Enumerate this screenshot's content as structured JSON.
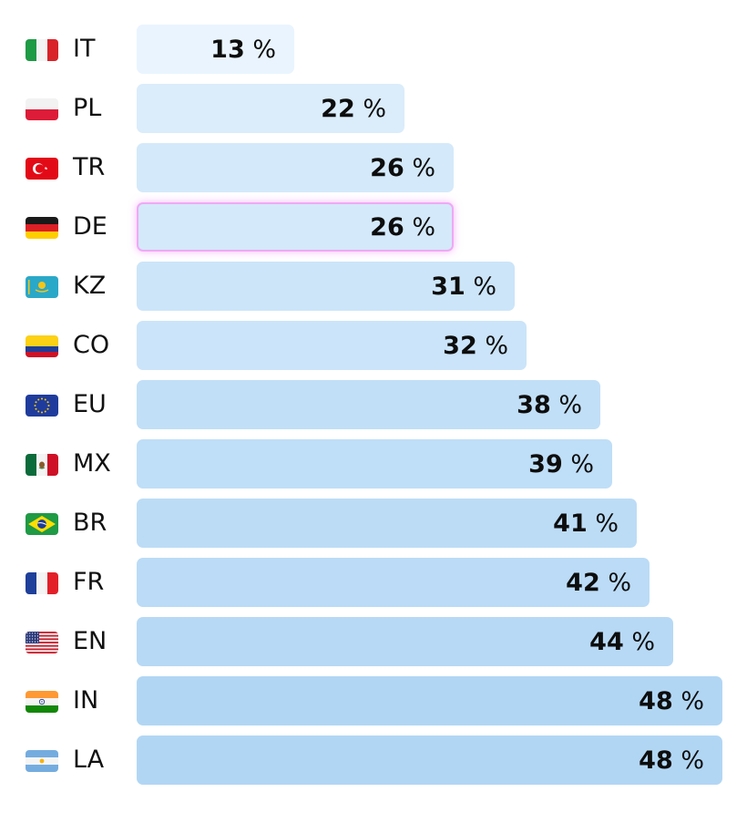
{
  "chart_data": {
    "type": "bar",
    "orientation": "horizontal",
    "categories": [
      "IT",
      "PL",
      "TR",
      "DE",
      "KZ",
      "CO",
      "EU",
      "MX",
      "BR",
      "FR",
      "EN",
      "IN",
      "LA"
    ],
    "values": [
      13,
      22,
      26,
      26,
      31,
      32,
      38,
      39,
      41,
      42,
      44,
      48,
      48
    ],
    "value_labels": [
      "13",
      "22",
      "26",
      "26",
      "31",
      "32",
      "38",
      "39",
      "41",
      "42",
      "44",
      "48",
      "48"
    ],
    "unit_suffix": " %",
    "highlighted_category": "DE",
    "title": "",
    "xlabel": "",
    "ylabel": "",
    "xlim": [
      0,
      48
    ],
    "grid": false,
    "legend": "none",
    "flags": [
      {
        "code": "IT",
        "icon": "italy-flag-icon"
      },
      {
        "code": "PL",
        "icon": "poland-flag-icon"
      },
      {
        "code": "TR",
        "icon": "turkey-flag-icon"
      },
      {
        "code": "DE",
        "icon": "germany-flag-icon"
      },
      {
        "code": "KZ",
        "icon": "kazakhstan-flag-icon"
      },
      {
        "code": "CO",
        "icon": "colombia-flag-icon"
      },
      {
        "code": "EU",
        "icon": "european-union-flag-icon"
      },
      {
        "code": "MX",
        "icon": "mexico-flag-icon"
      },
      {
        "code": "BR",
        "icon": "brazil-flag-icon"
      },
      {
        "code": "FR",
        "icon": "france-flag-icon"
      },
      {
        "code": "EN",
        "icon": "united-states-flag-icon"
      },
      {
        "code": "IN",
        "icon": "india-flag-icon"
      },
      {
        "code": "LA",
        "icon": "argentina-flag-icon"
      }
    ],
    "colors": {
      "bar_light": "#e9f4fe",
      "bar_dark": "#b1d6f4",
      "highlight_border": "#f0a8f5",
      "text": "#111111"
    }
  }
}
